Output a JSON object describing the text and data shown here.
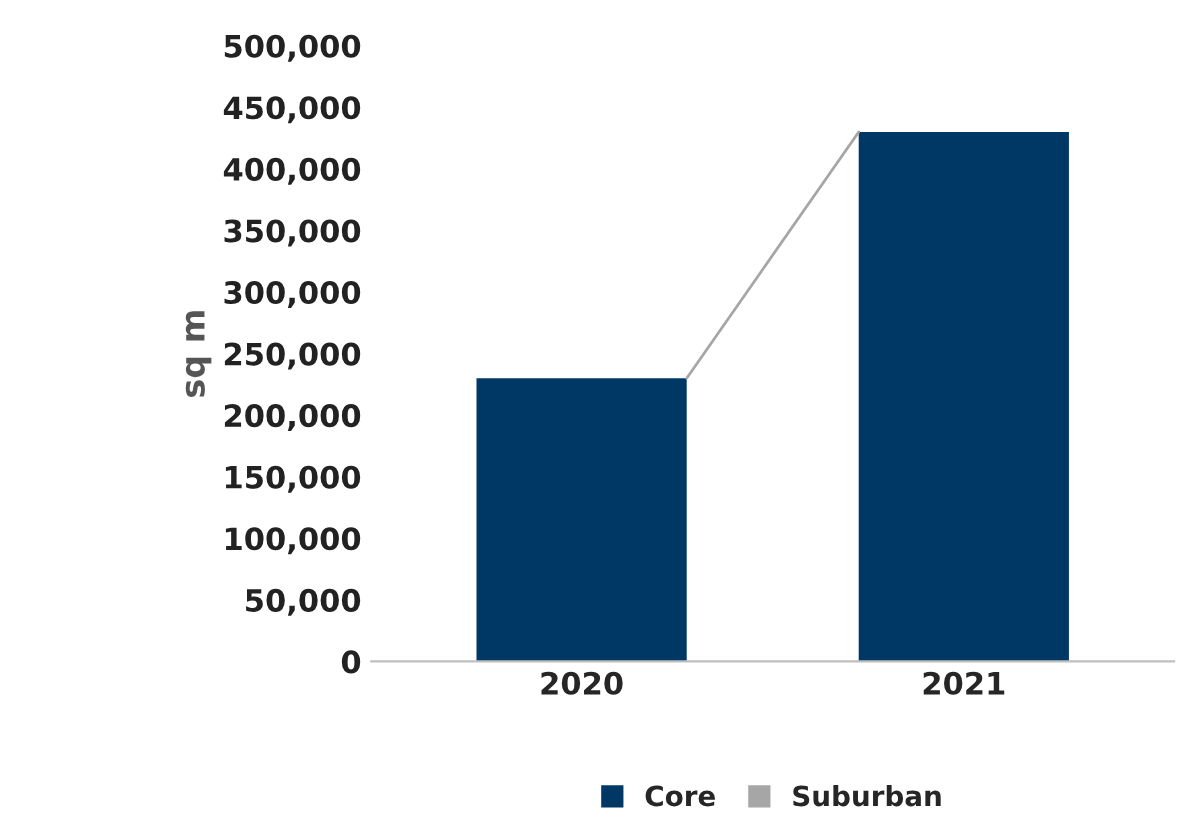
{
  "chart_data": {
    "type": "bar",
    "stacked": true,
    "ylabel": "sq m",
    "categories": [
      "2020",
      "2021"
    ],
    "series": [
      {
        "name": "Core",
        "color": "#003865",
        "values": [
          230000,
          430000
        ]
      },
      {
        "name": "Suburban",
        "color": "#a6a6a6",
        "values": [
          0,
          0
        ]
      }
    ],
    "ylim": [
      0,
      500000
    ],
    "yticks": [
      {
        "value": 0,
        "label": "0"
      },
      {
        "value": 50000,
        "label": "50,000"
      },
      {
        "value": 100000,
        "label": "100,000"
      },
      {
        "value": 150000,
        "label": "150,000"
      },
      {
        "value": 200000,
        "label": "200,000"
      },
      {
        "value": 250000,
        "label": "250,000"
      },
      {
        "value": 300000,
        "label": "300,000"
      },
      {
        "value": 350000,
        "label": "350,000"
      },
      {
        "value": 400000,
        "label": "400,000"
      },
      {
        "value": 450000,
        "label": "450,000"
      },
      {
        "value": 500000,
        "label": "500,000"
      }
    ],
    "grid": false,
    "legend": "bottom"
  }
}
